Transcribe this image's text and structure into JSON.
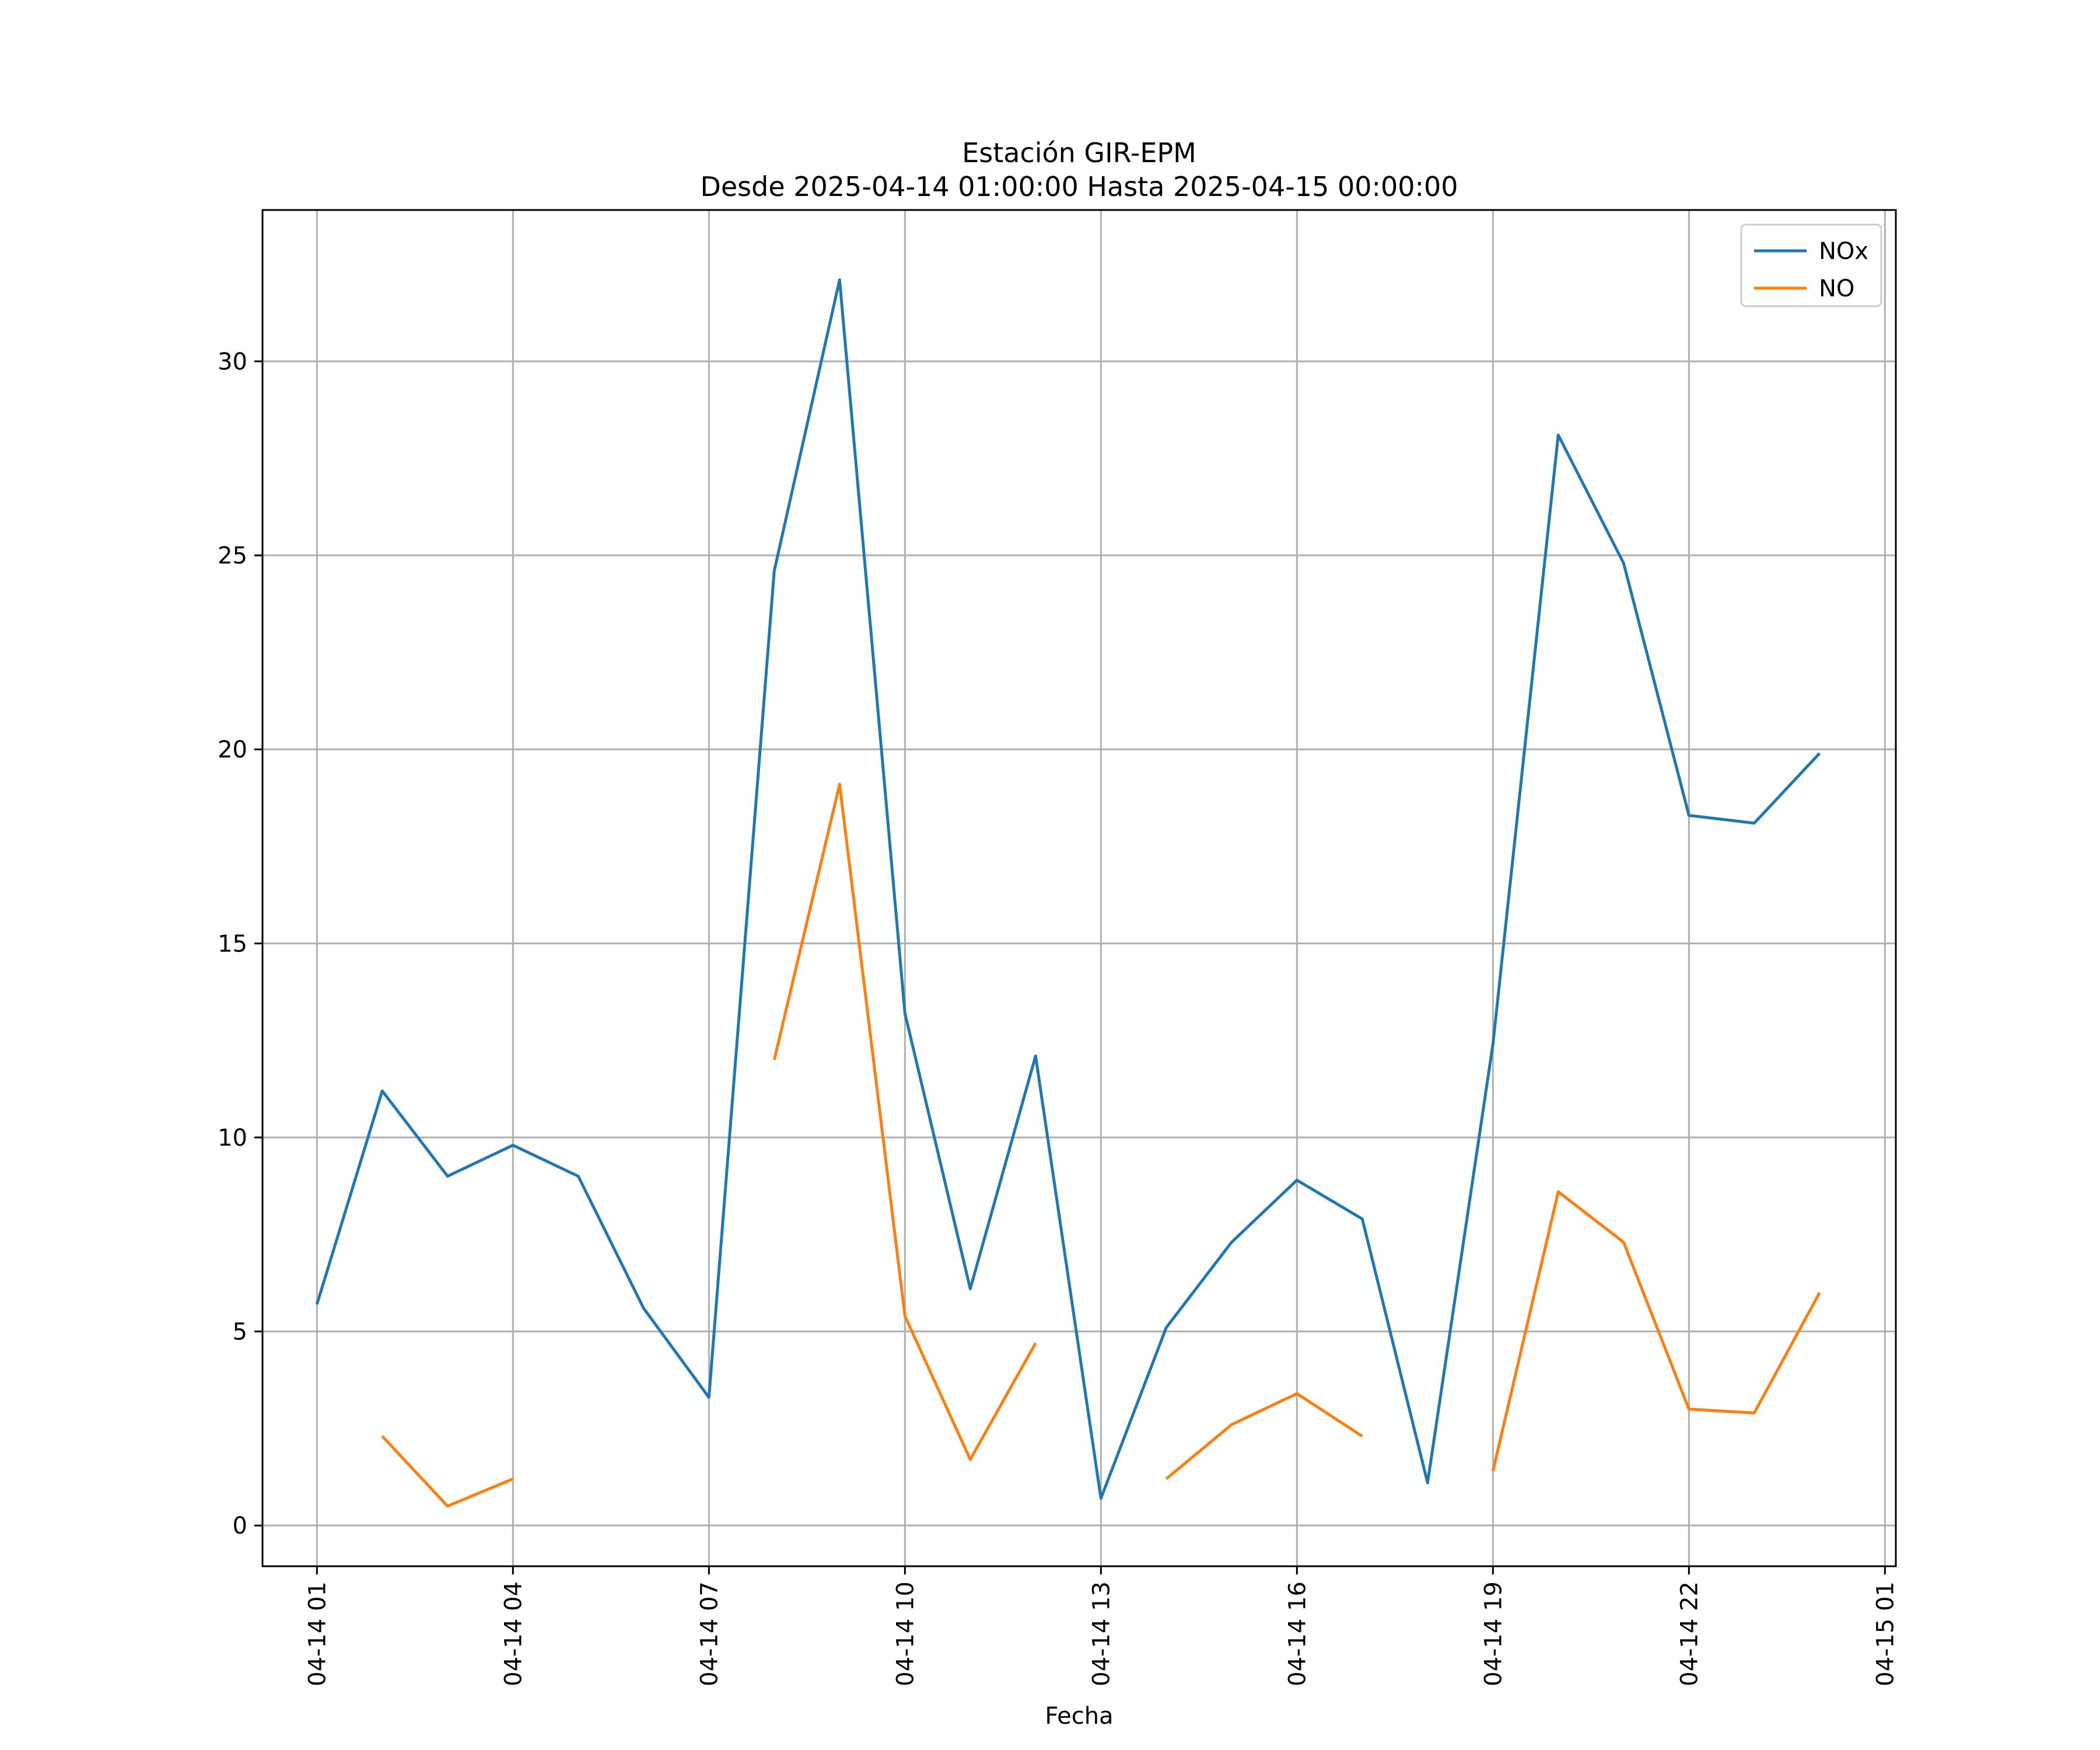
{
  "chart_data": {
    "type": "line",
    "title": "Estación GIR-EPM",
    "subtitle": "Desde 2025-04-14 01:00:00 Hasta 2025-04-15 00:00:00",
    "xlabel": "Fecha",
    "ylabel": "",
    "x": [
      "2025-04-14 01:00",
      "2025-04-14 02:00",
      "2025-04-14 03:00",
      "2025-04-14 04:00",
      "2025-04-14 05:00",
      "2025-04-14 06:00",
      "2025-04-14 07:00",
      "2025-04-14 08:00",
      "2025-04-14 09:00",
      "2025-04-14 10:00",
      "2025-04-14 11:00",
      "2025-04-14 12:00",
      "2025-04-14 13:00",
      "2025-04-14 14:00",
      "2025-04-14 15:00",
      "2025-04-14 16:00",
      "2025-04-14 17:00",
      "2025-04-14 18:00",
      "2025-04-14 19:00",
      "2025-04-14 20:00",
      "2025-04-14 21:00",
      "2025-04-14 22:00",
      "2025-04-14 23:00",
      "2025-04-15 00:00"
    ],
    "xlim": [
      "2025-04-14 00:10",
      "2025-04-15 01:10"
    ],
    "ylim": [
      -1.05,
      33.9
    ],
    "x_ticks": [
      {
        "x": "2025-04-14 01:00",
        "label": "04-14 01"
      },
      {
        "x": "2025-04-14 04:00",
        "label": "04-14 04"
      },
      {
        "x": "2025-04-14 07:00",
        "label": "04-14 07"
      },
      {
        "x": "2025-04-14 10:00",
        "label": "04-14 10"
      },
      {
        "x": "2025-04-14 13:00",
        "label": "04-14 13"
      },
      {
        "x": "2025-04-14 16:00",
        "label": "04-14 16"
      },
      {
        "x": "2025-04-14 19:00",
        "label": "04-14 19"
      },
      {
        "x": "2025-04-14 22:00",
        "label": "04-14 22"
      },
      {
        "x": "2025-04-15 01:00",
        "label": "04-15 01"
      }
    ],
    "y_ticks": [
      {
        "y": 0,
        "label": "0"
      },
      {
        "y": 5,
        "label": "5"
      },
      {
        "y": 10,
        "label": "10"
      },
      {
        "y": 15,
        "label": "15"
      },
      {
        "y": 20,
        "label": "20"
      },
      {
        "y": 25,
        "label": "25"
      },
      {
        "y": 30,
        "label": "30"
      }
    ],
    "grid": true,
    "legend": "upper-right",
    "series": [
      {
        "name": "NOx",
        "color": "#1f77b4",
        "values": [
          5.7,
          11.2,
          9.0,
          9.8,
          9.0,
          5.6,
          3.3,
          24.6,
          32.1,
          13.2,
          6.1,
          12.1,
          0.7,
          5.1,
          7.3,
          8.9,
          7.9,
          1.1,
          12.4,
          28.1,
          24.8,
          18.3,
          18.1,
          19.9
        ]
      },
      {
        "name": "NO",
        "color": "#ff7f0e",
        "values": [
          null,
          2.3,
          0.5,
          1.2,
          null,
          null,
          null,
          12.0,
          19.1,
          5.4,
          1.7,
          4.7,
          null,
          1.2,
          2.6,
          3.4,
          2.3,
          null,
          1.4,
          8.6,
          7.3,
          3.0,
          2.9,
          6.0
        ]
      }
    ]
  }
}
